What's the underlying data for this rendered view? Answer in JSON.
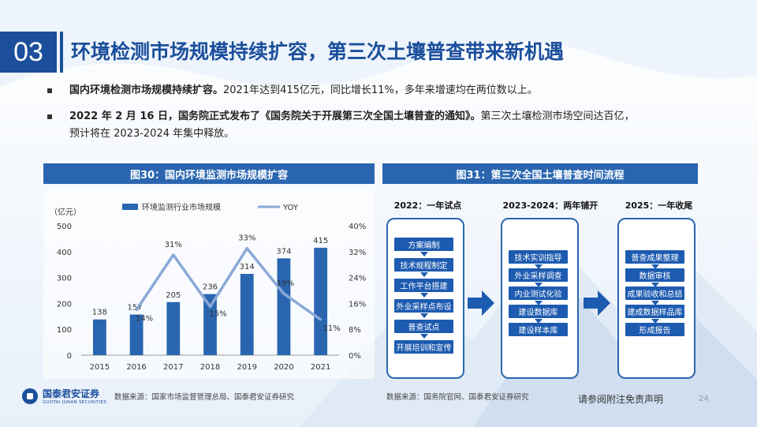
{
  "header": {
    "number": "03",
    "title": "环境检测市场规模持续扩容，第三次土壤普查带来新机遇"
  },
  "bullets": [
    {
      "bold": "国内环境检测市场规模持续扩容。",
      "text": "2021年达到415亿元，同比增长11%，多年来增速均在两位数以上。",
      "line2": ""
    },
    {
      "bold": "2022 年 2 月 16 日，国务院正式发布了《国务院关于开展第三次全国土壤普查的通知》。",
      "text": "第三次土壤检测市场空间达百亿，",
      "line2": "预计将在 2023-2024 年集中释放。"
    }
  ],
  "fig30": {
    "title": "图30：国内环境监测市场规模扩容",
    "unit": "（亿元）",
    "source": "数据来源：国家市场监督管理总局、国泰君安证券研究"
  },
  "fig31": {
    "title": "图31：第三次全国土壤普查时间流程",
    "source": "数据来源：国务院官网、国泰君安证券研究"
  },
  "chart_data": {
    "type": "bar",
    "categories": [
      "2015",
      "2016",
      "2017",
      "2018",
      "2019",
      "2020",
      "2021"
    ],
    "series": [
      {
        "name": "环境监测行业市场规模",
        "type": "bar",
        "values": [
          138,
          157,
          205,
          236,
          314,
          374,
          415
        ],
        "color": "#2a66b0"
      },
      {
        "name": "YOY",
        "type": "line",
        "axis": "right",
        "values": [
          14,
          31,
          15,
          33,
          19,
          11
        ],
        "x": [
          "2016",
          "2017",
          "2018",
          "2019",
          "2020",
          "2021"
        ],
        "labels": [
          "14%",
          "31%",
          "15%",
          "33%",
          "19%",
          "11%"
        ],
        "color": "#8aa8d8"
      }
    ],
    "ylim": [
      0,
      500
    ],
    "y_ticks": [
      "0",
      "100",
      "200",
      "300",
      "400",
      "500"
    ],
    "y2lim": [
      0,
      40
    ],
    "y2_ticks": [
      "0%",
      "8%",
      "16%",
      "24%",
      "32%",
      "40%"
    ],
    "legend": "top",
    "grid": false
  },
  "flow": {
    "columns": [
      {
        "head": "2022：一年试点",
        "steps": [
          "方案编制",
          "技术规程制定",
          "工作平台搭建",
          "外业采样点布设",
          "普查试点",
          "开展培训和宣传"
        ]
      },
      {
        "head": "2023-2024：两年铺开",
        "steps": [
          "技术实训指导",
          "外业采样调查",
          "内业测试化验",
          "建设数据库",
          "建设样本库"
        ]
      },
      {
        "head": "2025：一年收尾",
        "steps": [
          "普查成果整理",
          "数据审核",
          "成果验收和总结",
          "建成数据样品库",
          "形成报告"
        ]
      }
    ],
    "colors": {
      "step": "#1d5bb0",
      "border": "#2a66b0"
    }
  },
  "footer": {
    "logo_cn": "国泰君安证券",
    "logo_en": "GUOTAI JUNAN SECURITIES",
    "disclaimer": "请参阅附注免责声明",
    "page": "24"
  }
}
